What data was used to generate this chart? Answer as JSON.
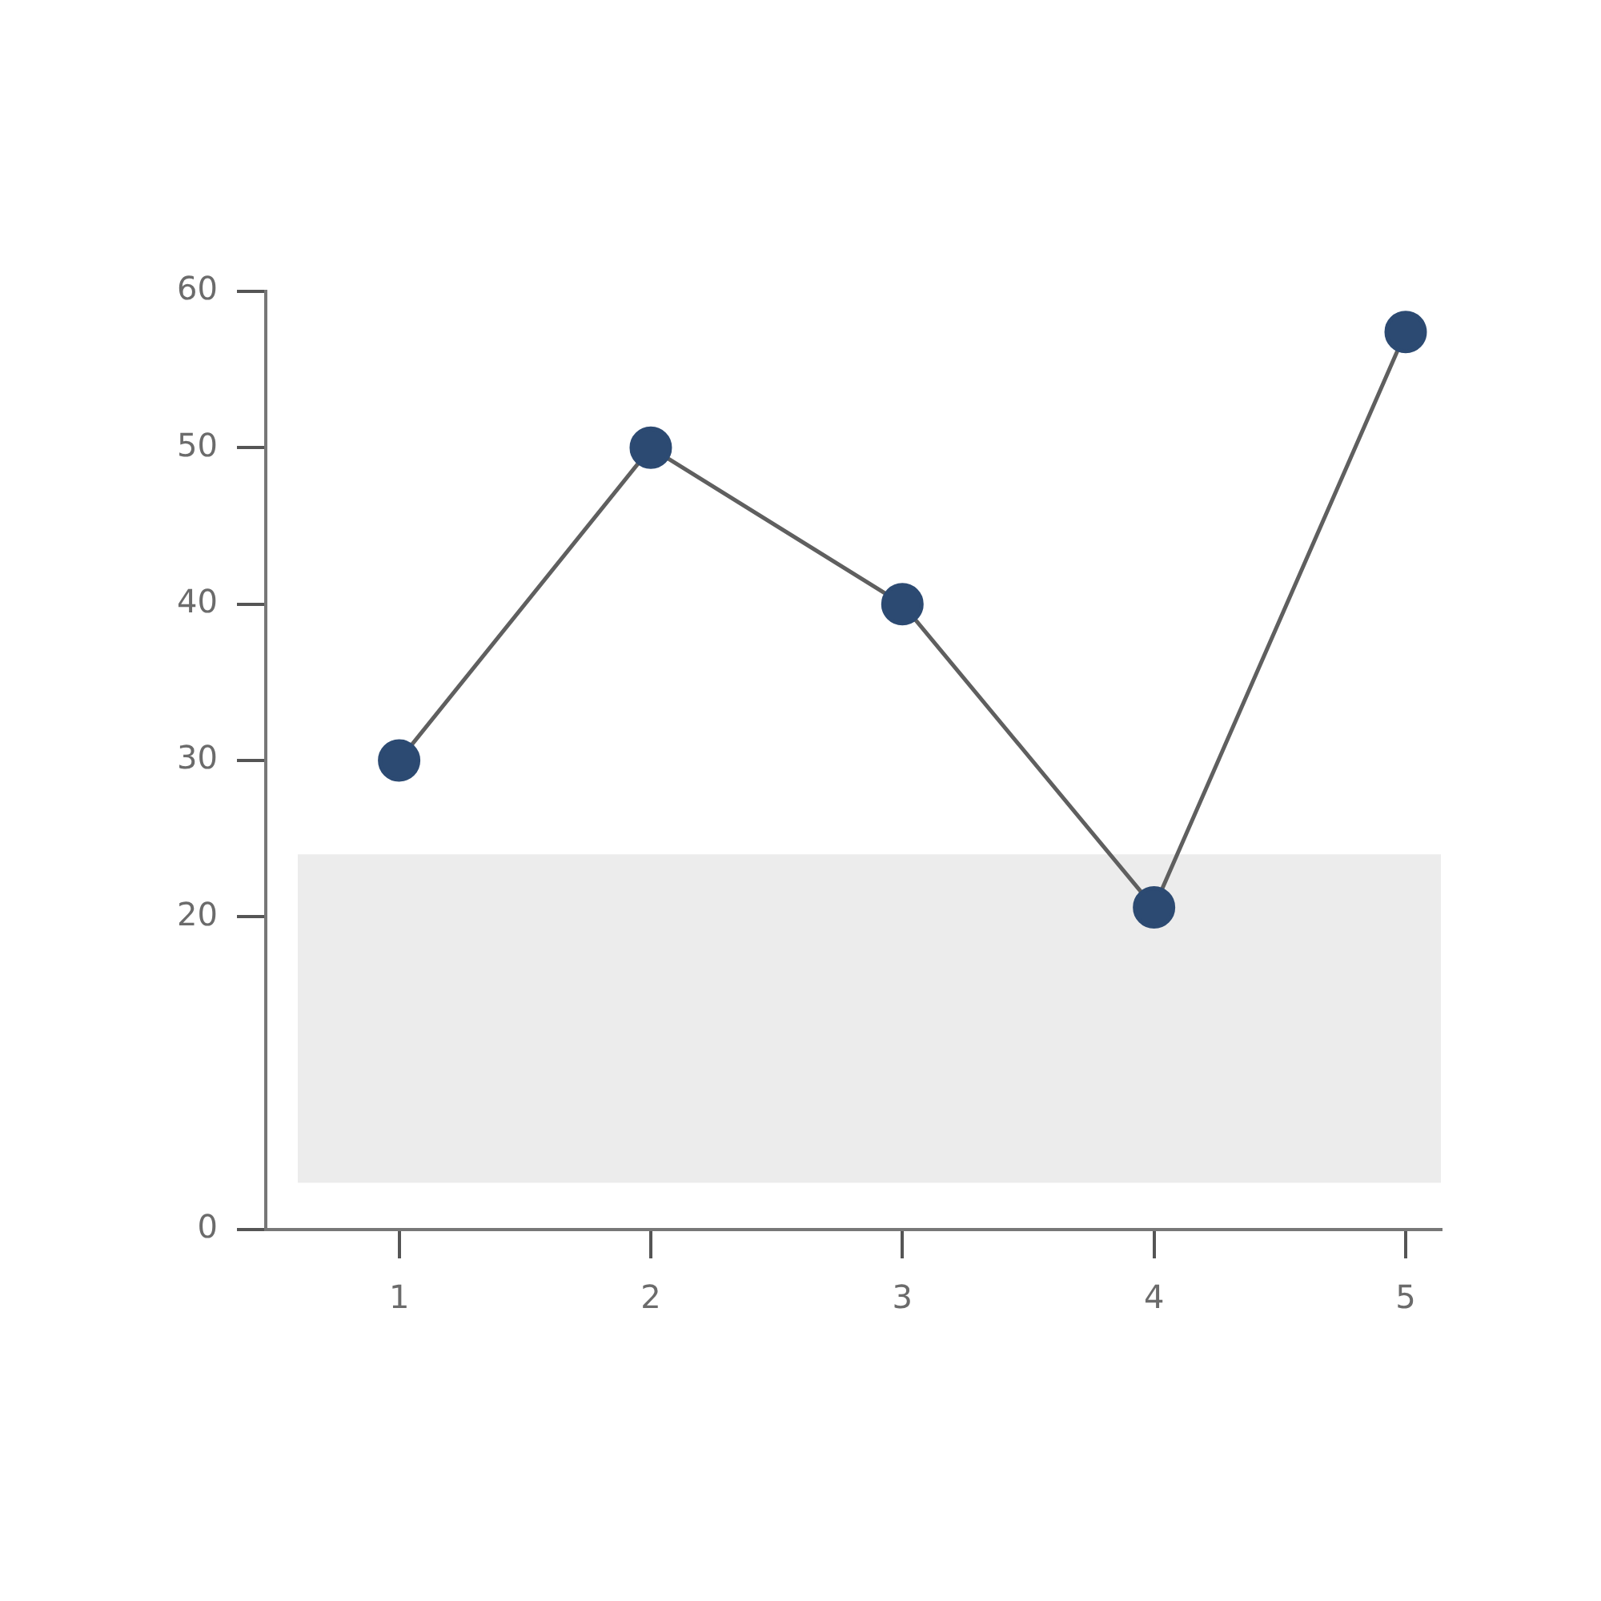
{
  "chart_data": {
    "type": "line",
    "x": [
      1,
      2,
      3,
      4,
      5
    ],
    "series": [
      {
        "color": "#2c4a72",
        "values": [
          30,
          50,
          40,
          20.6,
          57.4
        ]
      }
    ],
    "xlim": [
      0.47,
      5.14
    ],
    "xticks": [
      1,
      2,
      3,
      4,
      5
    ],
    "ylim": [
      0,
      60
    ],
    "yticks": [
      0,
      20,
      30,
      40,
      50,
      60
    ],
    "bands": [
      {
        "axis": "y",
        "from": 3,
        "to": 24,
        "color": "#ececec"
      }
    ],
    "grid": false,
    "legend": false,
    "marker": "circle",
    "line_style": "solid"
  }
}
